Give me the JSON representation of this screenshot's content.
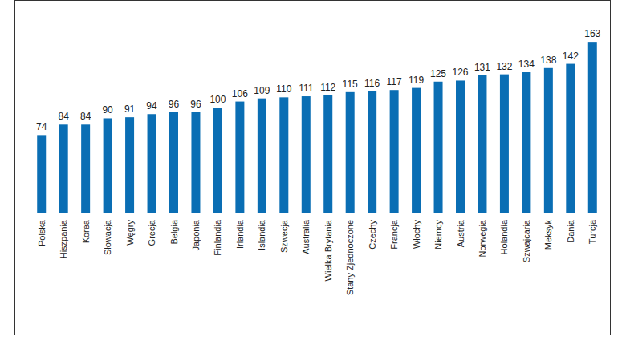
{
  "chart_data": {
    "type": "bar",
    "categories": [
      "Polska",
      "Hiszpania",
      "Korea",
      "Słowacja",
      "Węgry",
      "Grecja",
      "Belgia",
      "Japonia",
      "Finlandia",
      "Irlandia",
      "Islandia",
      "Szwecja",
      "Australia",
      "Wielka Brytania",
      "Stany Zjednoczone",
      "Czechy",
      "Francja",
      "Włochy",
      "Niemcy",
      "Austria",
      "Norwegia",
      "Holandia",
      "Szwajcaria",
      "Meksyk",
      "Dania",
      "Turcja"
    ],
    "values": [
      74,
      84,
      84,
      90,
      91,
      94,
      96,
      96,
      100,
      106,
      109,
      110,
      111,
      112,
      115,
      116,
      117,
      119,
      125,
      126,
      131,
      132,
      134,
      138,
      142,
      163
    ],
    "color": "#0a6eb4",
    "ylim": [
      0,
      170
    ],
    "data_labels": true,
    "tick_labels": "x",
    "grid": false
  }
}
